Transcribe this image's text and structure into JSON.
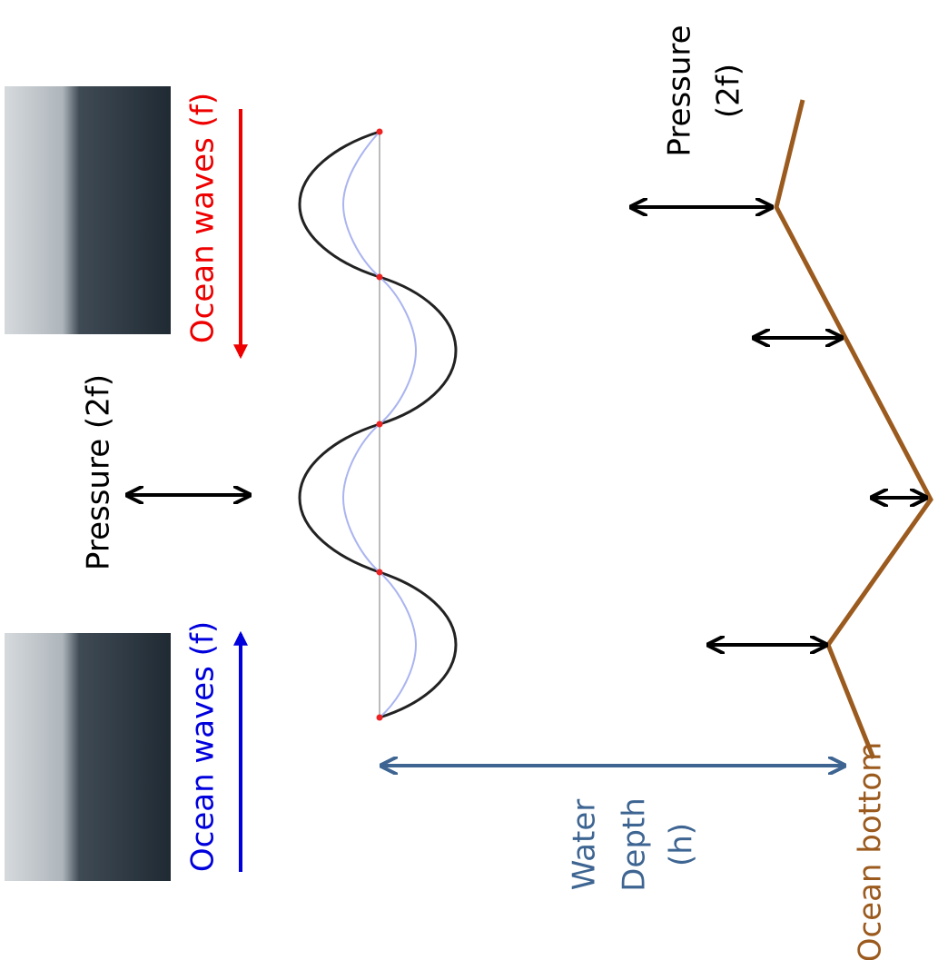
{
  "labels": {
    "ocean_waves_incoming": "Ocean waves (f)",
    "ocean_waves_reflected": "Ocean waves (f)",
    "pressure_surface": "Pressure (2f)",
    "pressure_bottom": [
      "Pressure",
      "(2f)"
    ],
    "water_depth": [
      "Water",
      "Depth",
      "(h)"
    ],
    "ocean_bottom": "Ocean bottom"
  }
}
